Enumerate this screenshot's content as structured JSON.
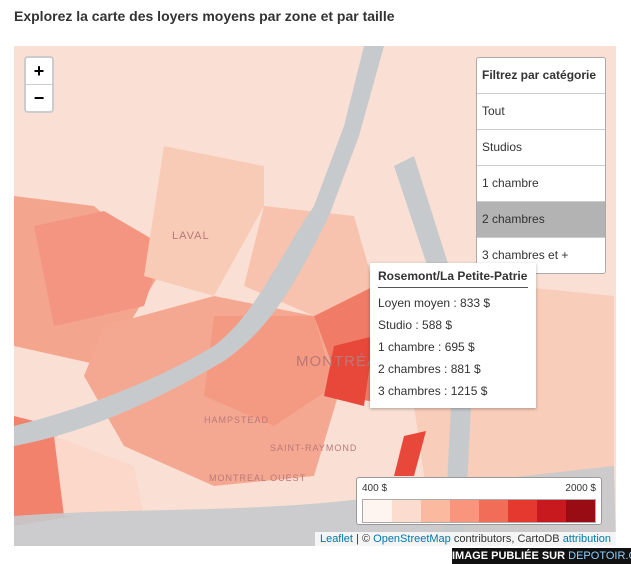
{
  "title": "Explorez la carte des loyers moyens par zone et par taille",
  "zoom": {
    "in": "+",
    "out": "−"
  },
  "filter": {
    "heading": "Filtrez par catégorie",
    "options": [
      "Tout",
      "Studios",
      "1 chambre",
      "2 chambres",
      "3 chambres et +"
    ]
  },
  "tooltip": {
    "title": "Rosemont/La Petite-Patrie",
    "lines": [
      "Loyen moyen : 833 $",
      "Studio : 588 $",
      "1 chambre : 695 $",
      "2 chambres : 881 $",
      "3 chambres : 1215 $"
    ]
  },
  "legend": {
    "min_label": "400 $",
    "max_label": "2000 $"
  },
  "map_labels": [
    "LAVAL",
    "MONTRÉAL",
    "HAMPSTEAD",
    "SAINT-RAYMOND",
    "MONTREAL OUEST"
  ],
  "attribution": {
    "leaflet": "Leaflet",
    "separator": "| ©",
    "osm": "OpenStreetMap",
    "contributors": "contributors, CartoDB",
    "attribution": "attribution"
  },
  "watermark": {
    "text": "IMAGE PUBLIÉE SUR",
    "site": "DEPOTOIR.CA"
  }
}
